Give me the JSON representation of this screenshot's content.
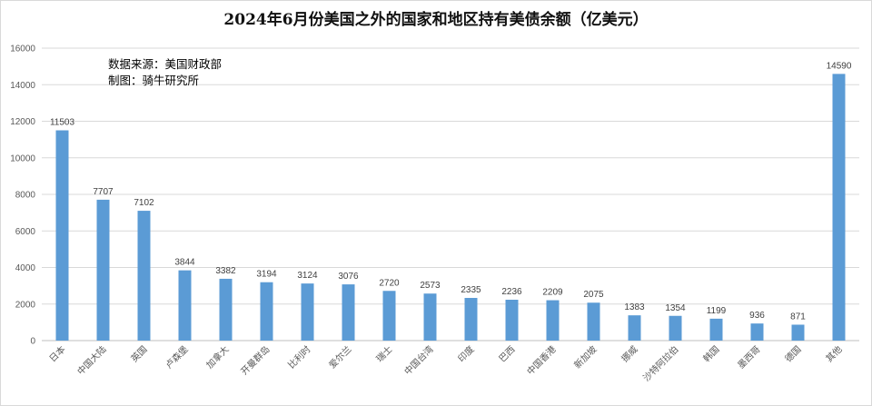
{
  "chart_data": {
    "type": "bar",
    "title": "2024年6月份美国之外的国家和地区持有美债余额（亿美元）",
    "notes": [
      "数据来源：美国财政部",
      "制图：骑牛研究所"
    ],
    "categories": [
      "日本",
      "中国大陆",
      "英国",
      "卢森堡",
      "加拿大",
      "开曼群岛",
      "比利时",
      "爱尔兰",
      "瑞士",
      "中国台湾",
      "印度",
      "巴西",
      "中国香港",
      "新加坡",
      "挪威",
      "沙特阿拉伯",
      "韩国",
      "墨西哥",
      "德国",
      "其他"
    ],
    "values": [
      11503,
      7707,
      7102,
      3844,
      3382,
      3194,
      3124,
      3076,
      2720,
      2573,
      2335,
      2236,
      2209,
      2075,
      1383,
      1354,
      1199,
      936,
      871,
      14590
    ],
    "ylim": [
      0,
      16000
    ],
    "yticks": [
      0,
      2000,
      4000,
      6000,
      8000,
      10000,
      12000,
      14000,
      16000
    ],
    "grid": true,
    "bar_color": "#5b9bd5",
    "xlabel": "",
    "ylabel": ""
  }
}
